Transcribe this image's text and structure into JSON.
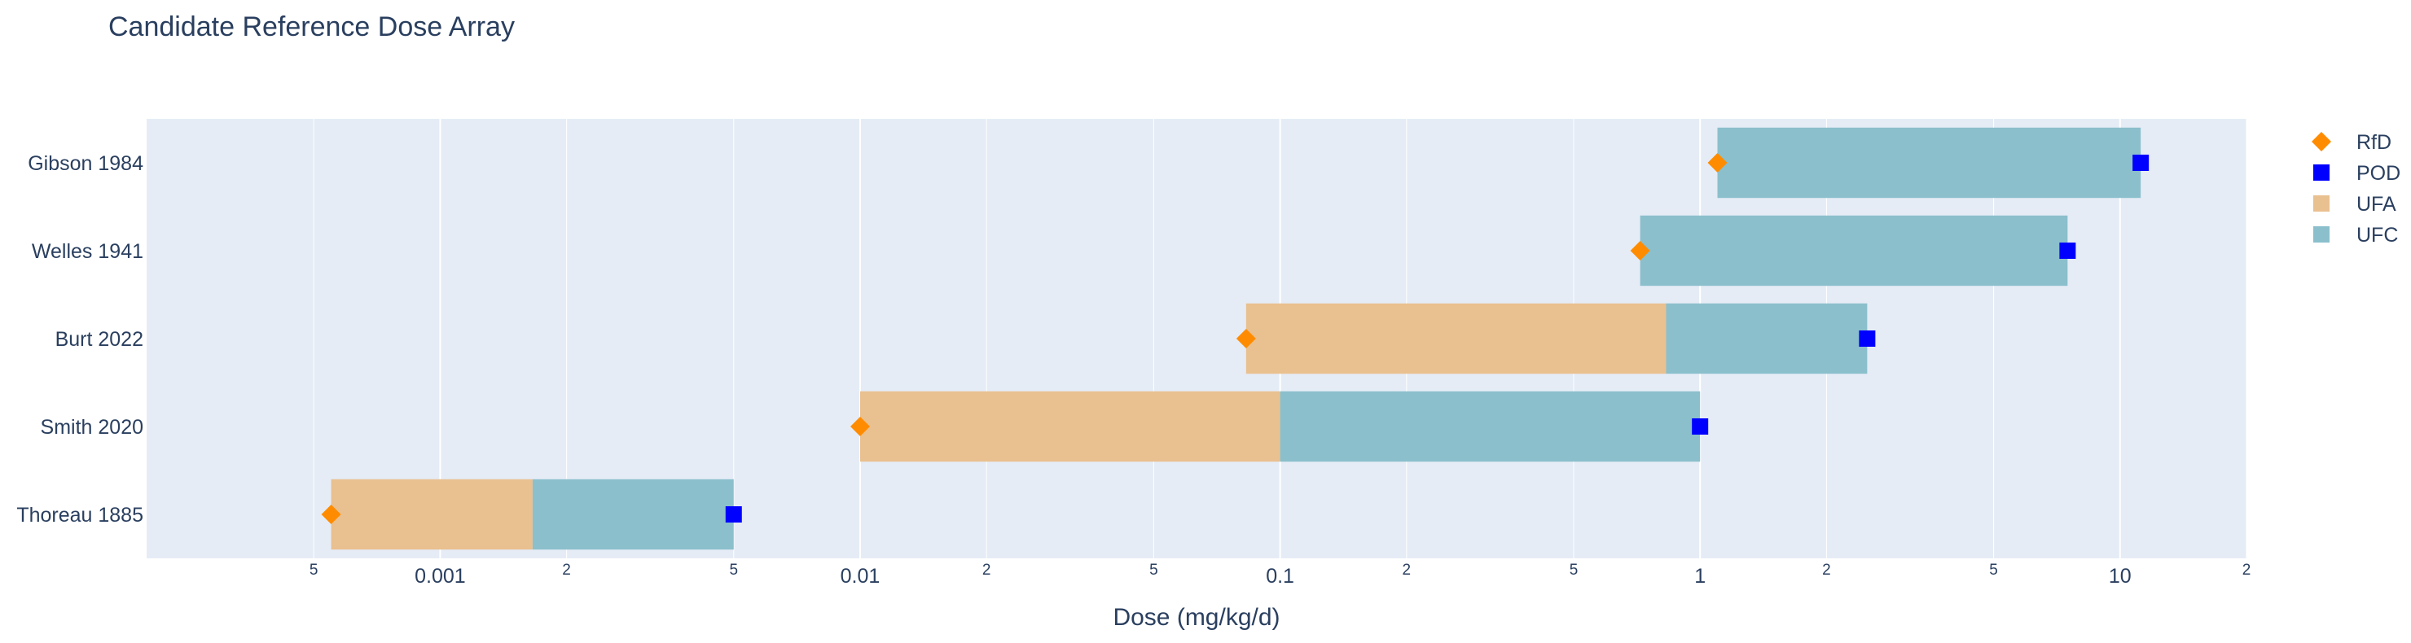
{
  "chart_data": {
    "type": "bar",
    "orientation": "horizontal",
    "title": "Candidate Reference Dose Array",
    "xlabel": "Dose (mg/kg/d)",
    "ylabel": "",
    "xscale": "log",
    "xlim": [
      0.0002,
      20
    ],
    "grid": true,
    "legend_position": "right",
    "categories": [
      "Thoreau 1885",
      "Smith 2020",
      "Burt 2022",
      "Welles 1941",
      "Gibson 1984"
    ],
    "x_ticks": [
      {
        "value": 0.0005,
        "label": "5",
        "major": false
      },
      {
        "value": 0.001,
        "label": "0.001",
        "major": true
      },
      {
        "value": 0.002,
        "label": "2",
        "major": false
      },
      {
        "value": 0.005,
        "label": "5",
        "major": false
      },
      {
        "value": 0.01,
        "label": "0.01",
        "major": true
      },
      {
        "value": 0.02,
        "label": "2",
        "major": false
      },
      {
        "value": 0.05,
        "label": "5",
        "major": false
      },
      {
        "value": 0.1,
        "label": "0.1",
        "major": true
      },
      {
        "value": 0.2,
        "label": "2",
        "major": false
      },
      {
        "value": 0.5,
        "label": "5",
        "major": false
      },
      {
        "value": 1,
        "label": "1",
        "major": true
      },
      {
        "value": 2,
        "label": "2",
        "major": false
      },
      {
        "value": 5,
        "label": "5",
        "major": false
      },
      {
        "value": 10,
        "label": "10",
        "major": true
      },
      {
        "value": 20,
        "label": "2",
        "major": false
      }
    ],
    "series": [
      {
        "name": "RfD",
        "marker": "diamond",
        "color": "#ff8c00",
        "values": [
          0.00055,
          0.01,
          0.083,
          0.72,
          1.1
        ]
      },
      {
        "name": "POD",
        "marker": "square",
        "color": "#0000ff",
        "values": [
          0.005,
          1.0,
          2.5,
          7.5,
          11.2
        ]
      },
      {
        "name": "UFA",
        "marker": "bar",
        "color": "#e9c08f",
        "ranges": [
          [
            0.00055,
            0.00166
          ],
          [
            0.01,
            0.1
          ],
          [
            0.083,
            0.83
          ],
          null,
          null
        ]
      },
      {
        "name": "UFC",
        "marker": "bar",
        "color": "#8bbfcc",
        "ranges": [
          [
            0.00166,
            0.005
          ],
          [
            0.1,
            1.0
          ],
          [
            0.83,
            2.5
          ],
          [
            0.72,
            7.5
          ],
          [
            1.1,
            11.2
          ]
        ]
      }
    ],
    "colors": {
      "plot_bg": "#e5ecf6",
      "grid": "#ffffff",
      "text": "#2a3f5f"
    }
  }
}
